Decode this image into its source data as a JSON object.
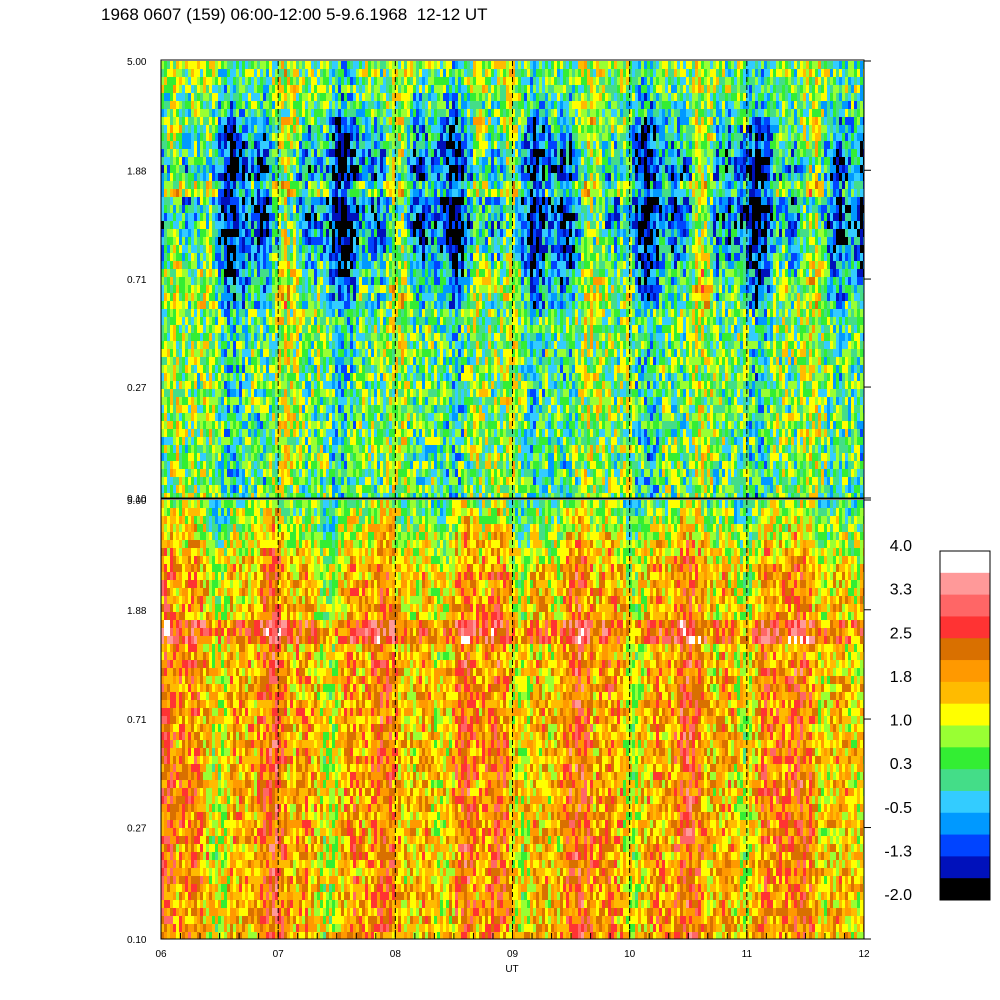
{
  "title": "1968 0607 (159) 06:00-12:00 5-9.6.1968  12-12 UT",
  "chart_data": {
    "type": "heatmap",
    "xlabel": "UT",
    "x_tick_labels": [
      "06",
      "07",
      "08",
      "09",
      "10",
      "11",
      "12"
    ],
    "x_tick_values": [
      6,
      7,
      8,
      9,
      10,
      11,
      12
    ],
    "xlim": [
      6,
      12
    ],
    "dashed_vertical_lines_at": [
      7,
      8,
      9,
      10,
      11
    ],
    "y_scale": "log",
    "panels": [
      {
        "position": "top",
        "y_tick_labels": [
          "5.00",
          "1.88",
          "0.71",
          "0.27",
          "0.10"
        ],
        "y_tick_values": [
          5.0,
          1.88,
          0.71,
          0.27,
          0.1
        ],
        "ylim": [
          0.1,
          5.0
        ],
        "dominant_level_range": [
          -1.3,
          1.4
        ]
      },
      {
        "position": "bottom",
        "y_tick_labels": [
          "5.00",
          "1.88",
          "0.71",
          "0.27",
          "0.10"
        ],
        "y_tick_values": [
          5.0,
          1.88,
          0.71,
          0.27,
          0.1
        ],
        "ylim": [
          0.1,
          5.0
        ],
        "dominant_level_range": [
          0.5,
          2.8
        ]
      }
    ],
    "colorbar": {
      "tick_labels": [
        "4.0",
        "3.3",
        "2.5",
        "1.8",
        "1.0",
        "0.3",
        "-0.5",
        "-1.3",
        "-2.0"
      ],
      "range": [
        -2.0,
        4.0
      ],
      "colors_top_to_bottom": [
        "#ffffff",
        "#ff9999",
        "#ff6666",
        "#ff3333",
        "#d97000",
        "#ff9900",
        "#ffbb00",
        "#ffff00",
        "#99ff33",
        "#33ee33",
        "#44dd88",
        "#33ccff",
        "#0099ff",
        "#0044ff",
        "#0011bb",
        "#000000"
      ]
    }
  }
}
